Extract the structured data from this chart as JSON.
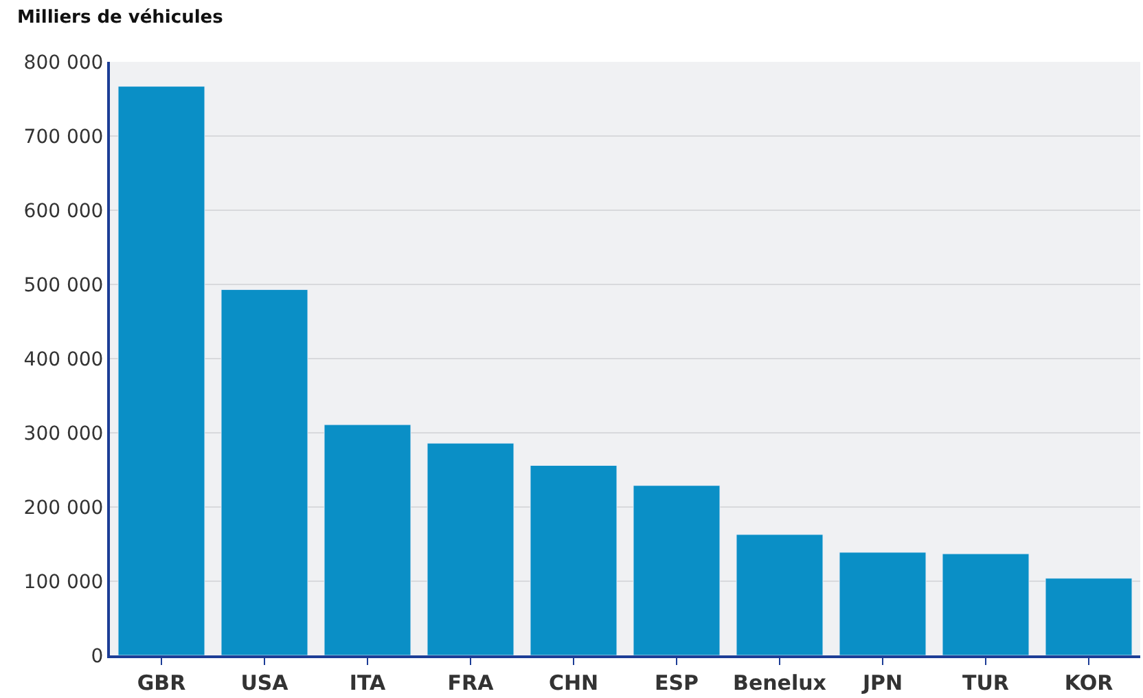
{
  "chart_data": {
    "type": "bar",
    "title": "Milliers de véhicules",
    "categories": [
      "GBR",
      "USA",
      "ITA",
      "FRA",
      "CHN",
      "ESP",
      "Benelux",
      "JPN",
      "TUR",
      "KOR"
    ],
    "values": [
      767000,
      493000,
      311000,
      286000,
      256000,
      229000,
      163000,
      139000,
      137000,
      104000
    ],
    "color": "#0a8fc6",
    "ylim": [
      0,
      800000
    ],
    "yticks": [
      0,
      {
        "value": 100000,
        "label": "100 000"
      },
      {
        "value": 200000,
        "label": "200 000"
      },
      {
        "value": 300000,
        "label": "300 000"
      },
      {
        "value": 400000,
        "label": "400 000"
      },
      {
        "value": 500000,
        "label": "500 000"
      },
      {
        "value": 600000,
        "label": "600 000"
      },
      {
        "value": 700000,
        "label": "700 000"
      },
      {
        "value": 800000,
        "label": "800 000"
      }
    ],
    "grid": "y"
  }
}
